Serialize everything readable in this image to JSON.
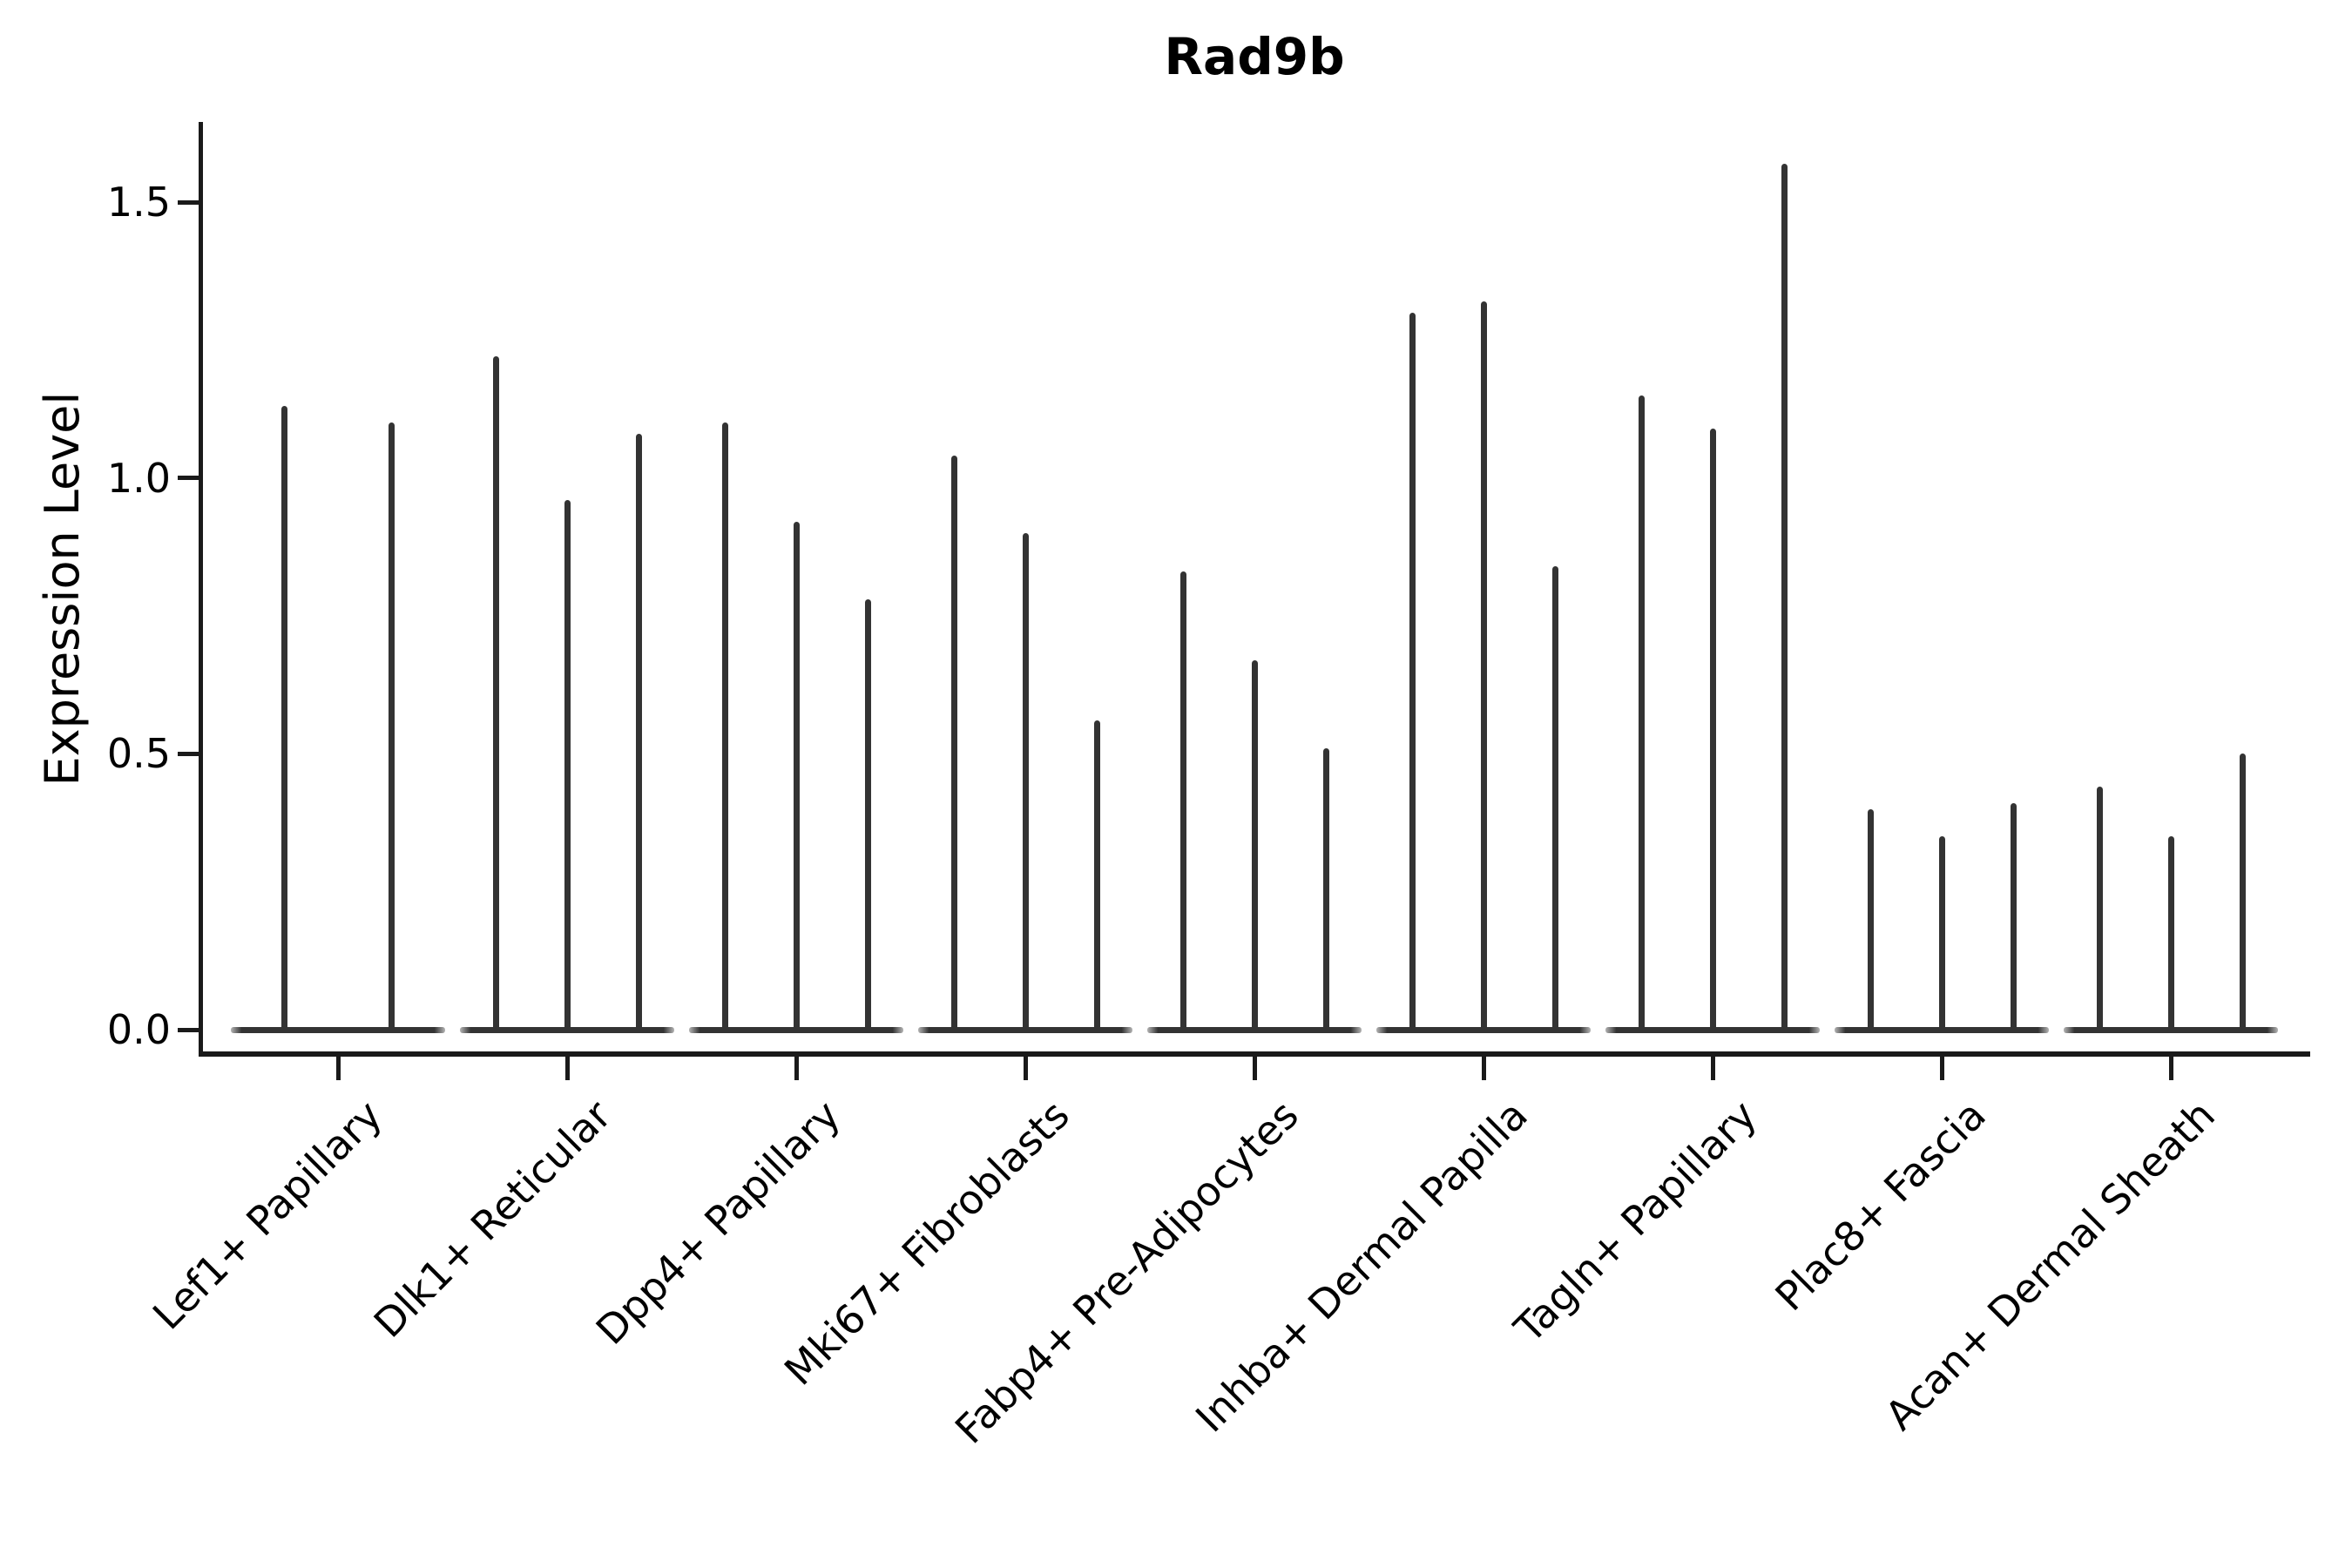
{
  "title": "Rad9b",
  "y_axis": {
    "label": "Expression Level",
    "ticks": [
      {
        "label": "0.0",
        "value": 0.0
      },
      {
        "label": "0.5",
        "value": 0.5
      },
      {
        "label": "1.0",
        "value": 1.0
      },
      {
        "label": "1.5",
        "value": 1.5
      }
    ]
  },
  "chart_data": {
    "type": "violin",
    "title": "Rad9b",
    "xlabel": "",
    "ylabel": "Expression Level",
    "ylim": [
      0,
      1.65
    ],
    "grid": false,
    "legend_position": "none",
    "violin_color": "#333333",
    "description": "Seurat-style stacked violin plot of Rad9b expression; violins are extremely narrow spikes rising from a flat base at 0 (most cells express 0), one spike per sample within each cell-type group.",
    "categories": [
      "Lef1+ Papillary",
      "Dlk1+ Reticular",
      "Dpp4+ Papillary",
      "Mki67+ Fibroblasts",
      "Fabp4+ Pre-Adipocytes",
      "Inhba+ Dermal Papilla",
      "Tagln+ Papillary",
      "Plac8+ Fascia",
      "Acan+ Dermal Sheath"
    ],
    "series": [
      {
        "category": "Lef1+ Papillary",
        "violin_max_values": [
          1.13,
          1.1
        ]
      },
      {
        "category": "Dlk1+ Reticular",
        "violin_max_values": [
          1.22,
          0.96,
          1.08
        ]
      },
      {
        "category": "Dpp4+ Papillary",
        "violin_max_values": [
          1.1,
          0.92,
          0.78
        ]
      },
      {
        "category": "Mki67+ Fibroblasts",
        "violin_max_values": [
          1.04,
          0.9,
          0.56
        ]
      },
      {
        "category": "Fabp4+ Pre-Adipocytes",
        "violin_max_values": [
          0.83,
          0.67,
          0.51
        ]
      },
      {
        "category": "Inhba+ Dermal Papilla",
        "violin_max_values": [
          1.3,
          1.32,
          0.84
        ]
      },
      {
        "category": "Tagln+ Papillary",
        "violin_max_values": [
          1.15,
          1.09,
          1.57
        ]
      },
      {
        "category": "Plac8+ Fascia",
        "violin_max_values": [
          0.4,
          0.35,
          0.41
        ]
      },
      {
        "category": "Acan+ Dermal Sheath",
        "violin_max_values": [
          0.44,
          0.35,
          0.5
        ]
      }
    ],
    "baseline_value": 0.0
  }
}
